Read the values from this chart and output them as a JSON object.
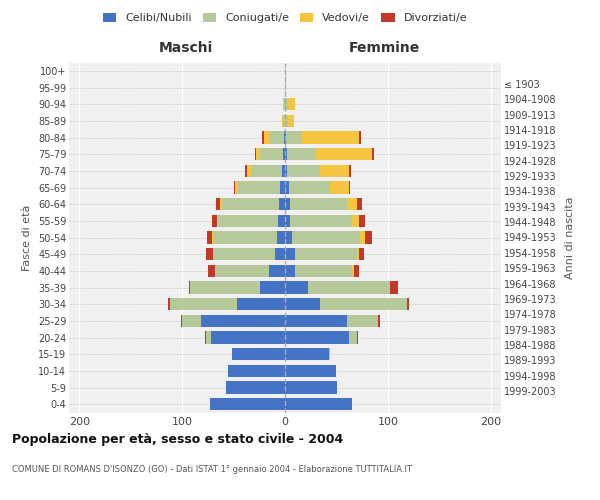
{
  "age_groups": [
    "0-4",
    "5-9",
    "10-14",
    "15-19",
    "20-24",
    "25-29",
    "30-34",
    "35-39",
    "40-44",
    "45-49",
    "50-54",
    "55-59",
    "60-64",
    "65-69",
    "70-74",
    "75-79",
    "80-84",
    "85-89",
    "90-94",
    "95-99",
    "100+"
  ],
  "birth_years": [
    "1999-2003",
    "1994-1998",
    "1989-1993",
    "1984-1988",
    "1979-1983",
    "1974-1978",
    "1969-1973",
    "1964-1968",
    "1959-1963",
    "1954-1958",
    "1949-1953",
    "1944-1948",
    "1939-1943",
    "1934-1938",
    "1929-1933",
    "1924-1928",
    "1919-1923",
    "1914-1918",
    "1909-1913",
    "1904-1908",
    "≤ 1903"
  ],
  "male": {
    "celibi": [
      73,
      57,
      55,
      52,
      72,
      82,
      47,
      24,
      16,
      10,
      8,
      7,
      6,
      5,
      3,
      2,
      1,
      0,
      0,
      0,
      0
    ],
    "coniugati": [
      0,
      0,
      0,
      0,
      5,
      18,
      65,
      68,
      52,
      60,
      62,
      58,
      55,
      42,
      30,
      22,
      14,
      2,
      1,
      0,
      0
    ],
    "vedovi": [
      0,
      0,
      0,
      0,
      0,
      0,
      0,
      0,
      0,
      0,
      1,
      1,
      2,
      2,
      4,
      4,
      5,
      1,
      1,
      0,
      0
    ],
    "divorziati": [
      0,
      0,
      0,
      0,
      1,
      1,
      2,
      1,
      7,
      7,
      5,
      5,
      4,
      1,
      2,
      1,
      2,
      0,
      0,
      0,
      0
    ]
  },
  "female": {
    "nubili": [
      65,
      51,
      50,
      43,
      62,
      60,
      34,
      22,
      10,
      10,
      7,
      5,
      5,
      4,
      2,
      2,
      1,
      0,
      0,
      0,
      0
    ],
    "coniugate": [
      0,
      0,
      0,
      1,
      8,
      30,
      85,
      80,
      55,
      60,
      66,
      60,
      55,
      40,
      32,
      28,
      16,
      3,
      2,
      0,
      0
    ],
    "vedove": [
      0,
      0,
      0,
      0,
      0,
      0,
      0,
      0,
      2,
      2,
      5,
      7,
      10,
      18,
      28,
      55,
      55,
      6,
      8,
      1,
      1
    ],
    "divorziate": [
      0,
      0,
      0,
      0,
      1,
      2,
      2,
      8,
      5,
      5,
      7,
      6,
      5,
      1,
      2,
      2,
      2,
      0,
      0,
      0,
      0
    ]
  },
  "colors": {
    "celibi": "#4472c4",
    "coniugati": "#b5c99a",
    "vedovi": "#f5c542",
    "divorziati": "#c0392b"
  },
  "xlim": 210,
  "title": "Popolazione per età, sesso e stato civile - 2004",
  "subtitle": "COMUNE DI ROMANS D'ISONZO (GO) - Dati ISTAT 1° gennaio 2004 - Elaborazione TUTTITALIA.IT",
  "ylabel": "Fasce di età",
  "ylabel_right": "Anni di nascita",
  "xlabel_left": "Maschi",
  "xlabel_right": "Femmine",
  "legend_labels": [
    "Celibi/Nubili",
    "Coniugati/e",
    "Vedovi/e",
    "Divorziati/e"
  ],
  "bg_color": "#f0f0f0"
}
